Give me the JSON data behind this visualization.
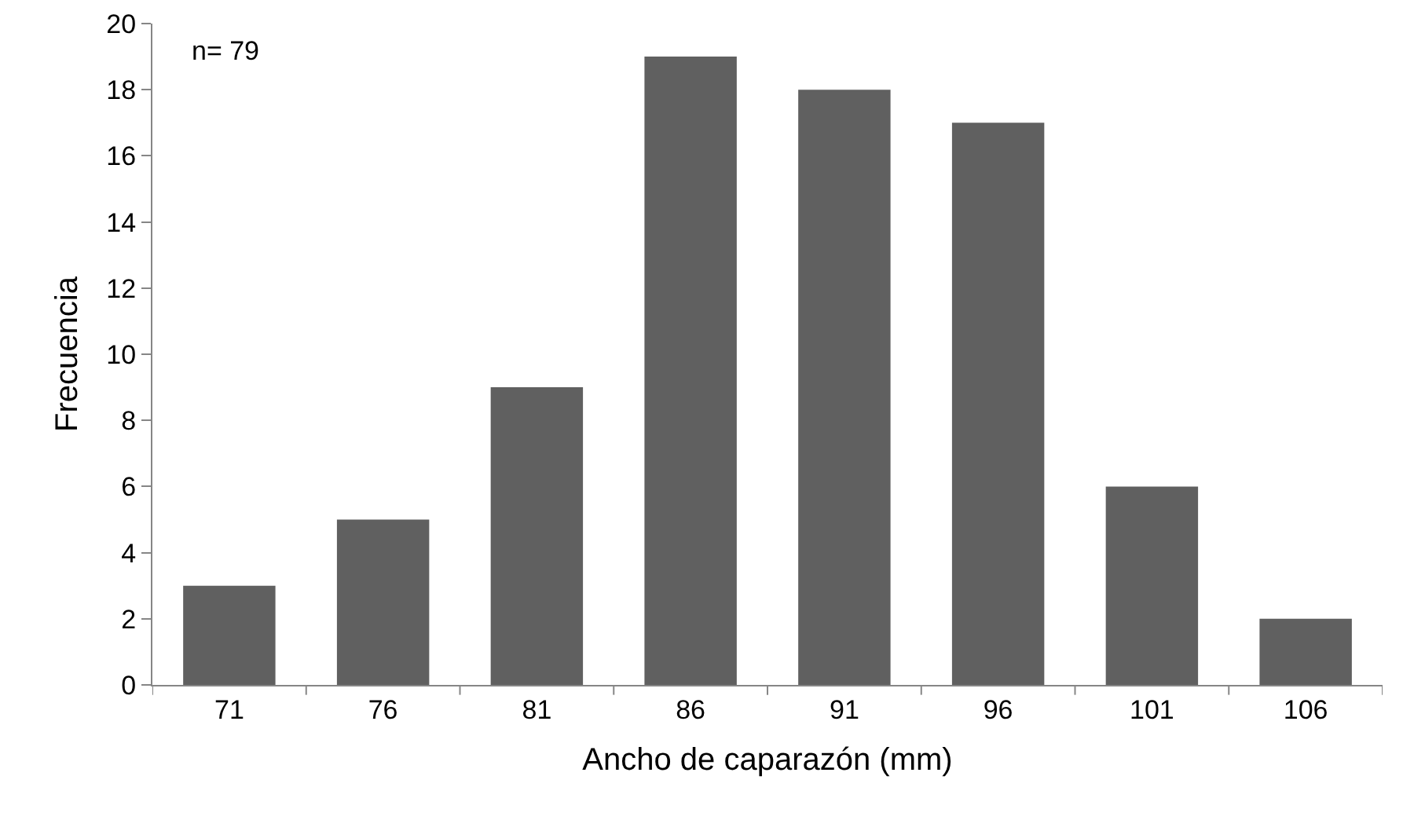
{
  "chart_data": {
    "type": "bar",
    "xlabel": "Ancho de caparazón (mm)",
    "ylabel": "Frecuencia",
    "categories": [
      "71",
      "76",
      "81",
      "86",
      "91",
      "96",
      "101",
      "106"
    ],
    "values": [
      3,
      5,
      9,
      19,
      18,
      17,
      6,
      2
    ],
    "color": "#606060",
    "ylim": [
      0,
      20
    ],
    "yticks": [
      0,
      2,
      4,
      6,
      8,
      10,
      12,
      14,
      16,
      18,
      20
    ],
    "grid": false,
    "legend": false,
    "annotations": [
      "n= 79"
    ]
  }
}
